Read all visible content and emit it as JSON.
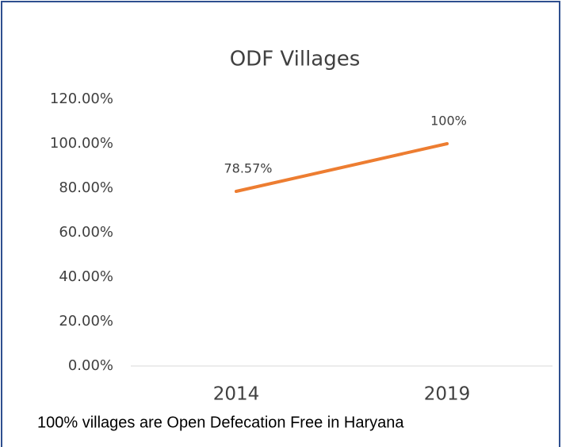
{
  "chart_data": {
    "type": "line",
    "title": "ODF Villages",
    "categories": [
      "2014",
      "2019"
    ],
    "values": [
      78.57,
      100
    ],
    "value_labels": [
      "78.57%",
      "100%"
    ],
    "color": "#ed7d31",
    "ylim": [
      0,
      120
    ],
    "yticks": [
      {
        "value": 0,
        "label": "0.00%"
      },
      {
        "value": 20,
        "label": "20.00%"
      },
      {
        "value": 40,
        "label": "40.00%"
      },
      {
        "value": 60,
        "label": "60.00%"
      },
      {
        "value": 80,
        "label": "80.00%"
      },
      {
        "value": 100,
        "label": "100.00%"
      },
      {
        "value": 120,
        "label": "120.00%"
      }
    ],
    "grid": false,
    "caption": "100% villages are Open Defecation Free in Haryana"
  }
}
